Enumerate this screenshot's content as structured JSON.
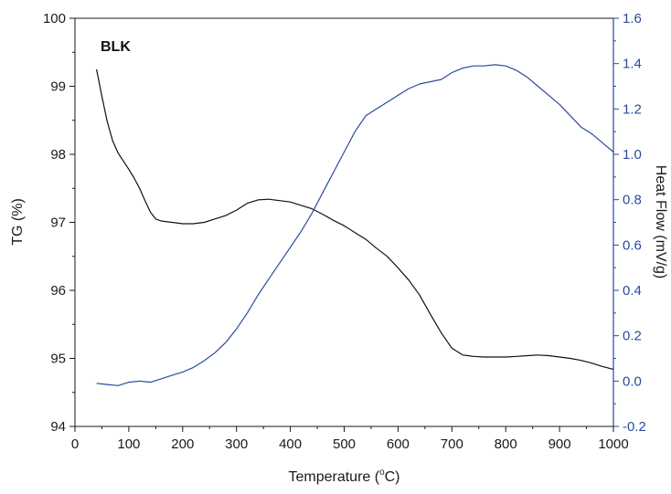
{
  "chart_data": {
    "type": "line",
    "title": "",
    "annotation": "BLK",
    "xlabel": "Temperature (°C)",
    "xlabel_prefix": "Temperature (",
    "xlabel_degree": "o",
    "xlabel_suffix": "C)",
    "ylabel_left": "TG (%)",
    "ylabel_right": "Heat Flow (mV/g)",
    "xlim": [
      0,
      1000
    ],
    "ylim_left": [
      94,
      100
    ],
    "ylim_right": [
      -0.2,
      1.6
    ],
    "x_ticks": [
      0,
      100,
      200,
      300,
      400,
      500,
      600,
      700,
      800,
      900,
      1000
    ],
    "x_tick_labels": [
      "0",
      "100",
      "200",
      "300",
      "400",
      "500",
      "600",
      "700",
      "800",
      "900",
      "1000"
    ],
    "y_left_ticks": [
      94,
      95,
      96,
      97,
      98,
      99,
      100
    ],
    "y_left_tick_labels": [
      "94",
      "95",
      "96",
      "97",
      "98",
      "99",
      "100"
    ],
    "y_right_ticks": [
      -0.2,
      0.0,
      0.2,
      0.4,
      0.6,
      0.8,
      1.0,
      1.2,
      1.4,
      1.6
    ],
    "y_right_tick_labels": [
      "-0.2",
      "0.0",
      "0.2",
      "0.4",
      "0.6",
      "0.8",
      "1.0",
      "1.2",
      "1.4",
      "1.6"
    ],
    "grid": false,
    "legend": "none",
    "colors": {
      "tg": "#111111",
      "heat_flow": "#2a4a9c",
      "right_axis": "#2a4a9c",
      "frame": "#1a1a1a"
    },
    "series": [
      {
        "axis": "left",
        "x": [
          40,
          50,
          60,
          70,
          80,
          90,
          100,
          110,
          120,
          130,
          140,
          150,
          160,
          180,
          200,
          220,
          240,
          260,
          280,
          300,
          320,
          340,
          360,
          380,
          400,
          420,
          440,
          460,
          480,
          500,
          520,
          540,
          560,
          580,
          600,
          620,
          640,
          660,
          680,
          700,
          720,
          740,
          760,
          780,
          800,
          820,
          840,
          860,
          880,
          900,
          920,
          940,
          960,
          980,
          1000
        ],
        "values": [
          99.25,
          98.85,
          98.48,
          98.2,
          98.02,
          97.9,
          97.78,
          97.65,
          97.5,
          97.32,
          97.15,
          97.05,
          97.02,
          97.0,
          96.98,
          96.98,
          97.0,
          97.05,
          97.1,
          97.18,
          97.28,
          97.33,
          97.34,
          97.32,
          97.3,
          97.25,
          97.2,
          97.12,
          97.03,
          96.95,
          96.85,
          96.75,
          96.62,
          96.5,
          96.33,
          96.15,
          95.93,
          95.65,
          95.38,
          95.15,
          95.05,
          95.03,
          95.02,
          95.02,
          95.02,
          95.03,
          95.04,
          95.05,
          95.04,
          95.02,
          95.0,
          94.97,
          94.93,
          94.88,
          94.84
        ]
      },
      {
        "axis": "right",
        "x": [
          40,
          60,
          80,
          100,
          120,
          140,
          160,
          180,
          200,
          220,
          240,
          260,
          280,
          300,
          320,
          340,
          360,
          380,
          400,
          420,
          440,
          460,
          480,
          500,
          520,
          540,
          560,
          580,
          600,
          620,
          640,
          660,
          680,
          700,
          720,
          740,
          760,
          780,
          800,
          820,
          840,
          860,
          880,
          900,
          920,
          940,
          960,
          980,
          1000
        ],
        "values": [
          -0.01,
          -0.015,
          -0.02,
          -0.005,
          0.0,
          -0.005,
          0.01,
          0.025,
          0.04,
          0.06,
          0.09,
          0.125,
          0.17,
          0.23,
          0.3,
          0.38,
          0.45,
          0.52,
          0.59,
          0.66,
          0.74,
          0.83,
          0.92,
          1.01,
          1.1,
          1.17,
          1.2,
          1.23,
          1.26,
          1.29,
          1.31,
          1.32,
          1.33,
          1.36,
          1.38,
          1.39,
          1.39,
          1.395,
          1.39,
          1.37,
          1.34,
          1.3,
          1.26,
          1.22,
          1.17,
          1.12,
          1.09,
          1.05,
          1.01
        ]
      }
    ]
  }
}
